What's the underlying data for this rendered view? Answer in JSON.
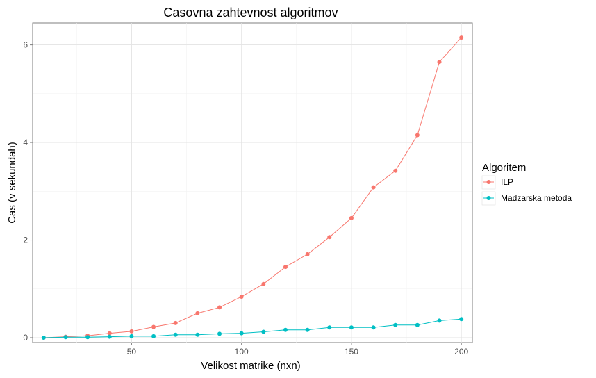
{
  "chart_data": {
    "type": "line",
    "title": "Casovna zahtevnost algoritmov",
    "xlabel": "Velikost matrike (nxn)",
    "ylabel": "Cas (v sekundah)",
    "xlim": [
      5,
      205
    ],
    "ylim": [
      -0.1,
      6.45
    ],
    "x_ticks": [
      50,
      100,
      150,
      200
    ],
    "y_ticks": [
      0,
      2,
      4,
      6
    ],
    "grid": true,
    "legend": {
      "title": "Algoritem",
      "position": "right"
    },
    "x": [
      10,
      20,
      30,
      40,
      50,
      60,
      70,
      80,
      90,
      100,
      110,
      120,
      130,
      140,
      150,
      160,
      170,
      180,
      190,
      200
    ],
    "series": [
      {
        "name": "ILP",
        "color": "#F8766D",
        "values": [
          0.0,
          0.02,
          0.04,
          0.09,
          0.13,
          0.22,
          0.3,
          0.5,
          0.62,
          0.84,
          1.1,
          1.45,
          1.71,
          2.06,
          2.45,
          3.08,
          3.42,
          4.15,
          5.65,
          6.15
        ]
      },
      {
        "name": "Madzarska metoda",
        "color": "#00BFC4",
        "values": [
          0.0,
          0.01,
          0.01,
          0.02,
          0.03,
          0.03,
          0.06,
          0.06,
          0.08,
          0.09,
          0.12,
          0.16,
          0.16,
          0.21,
          0.21,
          0.21,
          0.26,
          0.26,
          0.35,
          0.38
        ]
      }
    ]
  }
}
